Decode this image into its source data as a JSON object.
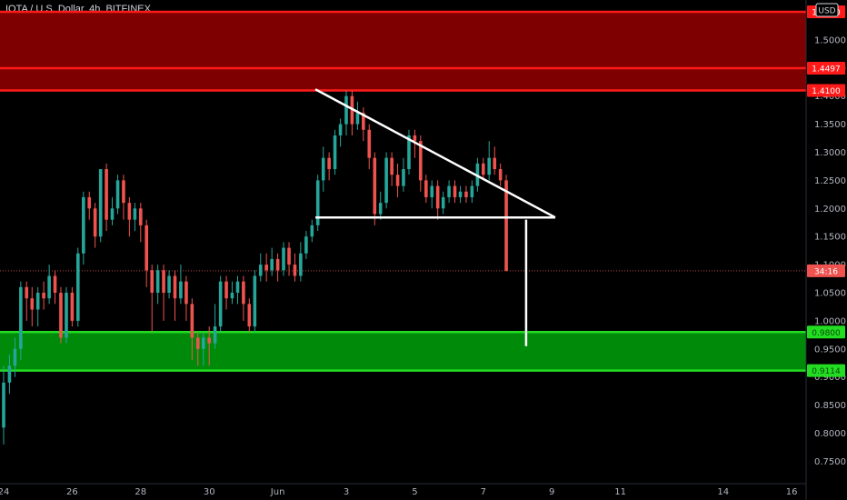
{
  "title": "IOTA / U.S. Dollar, 4h, BITFINEX",
  "currency": "USD",
  "colors": {
    "up": "#26a69a",
    "down": "#ef5350",
    "resistance_fill": "#7f0000",
    "resistance_line": "#ff1a1a",
    "support_fill": "#008a0a",
    "support_line": "#22dd22",
    "pattern": "#ffffff",
    "background": "#000000"
  },
  "chart_data": {
    "type": "candlestick",
    "x_axis": {
      "ticks": [
        {
          "label": "24",
          "day": 24
        },
        {
          "label": "26",
          "day": 26
        },
        {
          "label": "28",
          "day": 28
        },
        {
          "label": "30",
          "day": 30
        },
        {
          "label": "Jun",
          "day": 32
        },
        {
          "label": "3",
          "day": 34
        },
        {
          "label": "5",
          "day": 36
        },
        {
          "label": "7",
          "day": 38
        },
        {
          "label": "9",
          "day": 40
        },
        {
          "label": "11",
          "day": 42
        },
        {
          "label": "14",
          "day": 45
        },
        {
          "label": "16",
          "day": 47
        }
      ]
    },
    "y_axis": {
      "range": [
        0.725,
        1.555
      ],
      "ticks": [
        "1.5000",
        "1.4500",
        "1.4000",
        "1.3500",
        "1.3000",
        "1.2500",
        "1.2000",
        "1.1500",
        "1.1000",
        "1.0500",
        "1.0000",
        "0.9500",
        "0.9000",
        "0.8500",
        "0.8000",
        "0.7500"
      ]
    },
    "zones": [
      {
        "name": "resistance",
        "from": 1.41,
        "to": 1.55,
        "level_labels": [
          "1.5500",
          "1.4497",
          "1.4100"
        ],
        "levels": [
          1.55,
          1.4497,
          1.41
        ]
      },
      {
        "name": "support",
        "from": 0.9114,
        "to": 0.98,
        "level_labels": [
          "0.9800",
          "0.9114"
        ],
        "levels": [
          0.98,
          0.9114
        ]
      }
    ],
    "pattern": {
      "name": "descending triangle",
      "upper_line": [
        {
          "day": 33.1,
          "price": 1.412
        },
        {
          "day": 40.1,
          "price": 1.184
        }
      ],
      "base_line": [
        {
          "day": 33.1,
          "price": 1.184
        },
        {
          "day": 40.1,
          "price": 1.184
        }
      ],
      "target_line": [
        {
          "day": 39.25,
          "price": 1.18
        },
        {
          "day": 39.25,
          "price": 0.955
        }
      ]
    },
    "last_price": {
      "price": 1.089,
      "label": "34:16"
    },
    "candles": [
      [
        24.0,
        0.81,
        0.89,
        0.92,
        0.78
      ],
      [
        24.17,
        0.89,
        0.92,
        0.94,
        0.87
      ],
      [
        24.33,
        0.92,
        0.95,
        0.97,
        0.9
      ],
      [
        24.5,
        0.95,
        1.06,
        1.07,
        0.93
      ],
      [
        24.67,
        1.06,
        1.04,
        1.07,
        1.0
      ],
      [
        24.83,
        1.04,
        1.02,
        1.06,
        0.99
      ],
      [
        25.0,
        1.02,
        1.05,
        1.06,
        0.99
      ],
      [
        25.17,
        1.05,
        1.04,
        1.07,
        1.02
      ],
      [
        25.33,
        1.04,
        1.08,
        1.1,
        1.03
      ],
      [
        25.5,
        1.08,
        1.05,
        1.09,
        1.03
      ],
      [
        25.67,
        1.05,
        0.97,
        1.06,
        0.96
      ],
      [
        25.83,
        0.97,
        1.05,
        1.06,
        0.96
      ],
      [
        26.0,
        1.05,
        1.0,
        1.06,
        0.99
      ],
      [
        26.17,
        1.0,
        1.12,
        1.13,
        0.99
      ],
      [
        26.33,
        1.12,
        1.22,
        1.23,
        1.1
      ],
      [
        26.5,
        1.22,
        1.2,
        1.23,
        1.18
      ],
      [
        26.67,
        1.2,
        1.15,
        1.21,
        1.13
      ],
      [
        26.83,
        1.15,
        1.27,
        1.27,
        1.14
      ],
      [
        27.0,
        1.27,
        1.18,
        1.28,
        1.16
      ],
      [
        27.17,
        1.18,
        1.2,
        1.22,
        1.17
      ],
      [
        27.33,
        1.2,
        1.25,
        1.26,
        1.19
      ],
      [
        27.5,
        1.25,
        1.21,
        1.26,
        1.18
      ],
      [
        27.67,
        1.21,
        1.18,
        1.22,
        1.15
      ],
      [
        27.83,
        1.18,
        1.2,
        1.21,
        1.16
      ],
      [
        28.0,
        1.2,
        1.17,
        1.21,
        1.14
      ],
      [
        28.17,
        1.17,
        1.09,
        1.18,
        1.06
      ],
      [
        28.33,
        1.09,
        1.05,
        1.1,
        0.98
      ],
      [
        28.5,
        1.05,
        1.09,
        1.1,
        1.03
      ],
      [
        28.67,
        1.09,
        1.05,
        1.1,
        1.0
      ],
      [
        28.83,
        1.05,
        1.08,
        1.09,
        1.04
      ],
      [
        29.0,
        1.08,
        1.04,
        1.09,
        1.0
      ],
      [
        29.17,
        1.04,
        1.07,
        1.1,
        1.03
      ],
      [
        29.33,
        1.07,
        1.03,
        1.08,
        1.0
      ],
      [
        29.5,
        1.03,
        0.97,
        1.04,
        0.93
      ],
      [
        29.67,
        0.97,
        0.95,
        0.98,
        0.92
      ],
      [
        29.83,
        0.95,
        0.97,
        0.98,
        0.92
      ],
      [
        30.0,
        0.97,
        0.96,
        0.99,
        0.92
      ],
      [
        30.17,
        0.96,
        0.99,
        1.03,
        0.95
      ],
      [
        30.33,
        0.99,
        1.07,
        1.08,
        0.98
      ],
      [
        30.5,
        1.07,
        1.04,
        1.08,
        1.02
      ],
      [
        30.67,
        1.04,
        1.05,
        1.07,
        1.03
      ],
      [
        30.83,
        1.05,
        1.07,
        1.08,
        1.03
      ],
      [
        31.0,
        1.07,
        1.03,
        1.08,
        1.0
      ],
      [
        31.17,
        1.03,
        0.99,
        1.04,
        0.98
      ],
      [
        31.33,
        0.99,
        1.08,
        1.09,
        0.98
      ],
      [
        31.5,
        1.08,
        1.1,
        1.12,
        1.07
      ],
      [
        31.67,
        1.1,
        1.09,
        1.12,
        1.07
      ],
      [
        31.83,
        1.09,
        1.11,
        1.13,
        1.08
      ],
      [
        32.0,
        1.11,
        1.09,
        1.12,
        1.07
      ],
      [
        32.17,
        1.09,
        1.13,
        1.14,
        1.08
      ],
      [
        32.33,
        1.13,
        1.1,
        1.14,
        1.08
      ],
      [
        32.5,
        1.1,
        1.08,
        1.12,
        1.07
      ],
      [
        32.67,
        1.08,
        1.12,
        1.14,
        1.07
      ],
      [
        32.83,
        1.12,
        1.15,
        1.16,
        1.11
      ],
      [
        33.0,
        1.15,
        1.17,
        1.18,
        1.14
      ],
      [
        33.17,
        1.17,
        1.25,
        1.26,
        1.16
      ],
      [
        33.33,
        1.25,
        1.29,
        1.31,
        1.23
      ],
      [
        33.5,
        1.29,
        1.27,
        1.3,
        1.25
      ],
      [
        33.67,
        1.27,
        1.33,
        1.34,
        1.26
      ],
      [
        33.83,
        1.33,
        1.35,
        1.36,
        1.31
      ],
      [
        34.0,
        1.35,
        1.4,
        1.41,
        1.33
      ],
      [
        34.17,
        1.4,
        1.35,
        1.41,
        1.33
      ],
      [
        34.33,
        1.35,
        1.37,
        1.39,
        1.34
      ],
      [
        34.5,
        1.37,
        1.34,
        1.38,
        1.32
      ],
      [
        34.67,
        1.34,
        1.29,
        1.35,
        1.27
      ],
      [
        34.83,
        1.29,
        1.19,
        1.3,
        1.17
      ],
      [
        35.0,
        1.19,
        1.21,
        1.23,
        1.18
      ],
      [
        35.17,
        1.21,
        1.29,
        1.3,
        1.2
      ],
      [
        35.33,
        1.29,
        1.26,
        1.3,
        1.24
      ],
      [
        35.5,
        1.26,
        1.24,
        1.28,
        1.22
      ],
      [
        35.67,
        1.24,
        1.27,
        1.29,
        1.23
      ],
      [
        35.83,
        1.27,
        1.33,
        1.34,
        1.26
      ],
      [
        36.0,
        1.33,
        1.32,
        1.34,
        1.29
      ],
      [
        36.17,
        1.32,
        1.25,
        1.33,
        1.23
      ],
      [
        36.33,
        1.25,
        1.22,
        1.26,
        1.21
      ],
      [
        36.5,
        1.22,
        1.24,
        1.25,
        1.2
      ],
      [
        36.67,
        1.24,
        1.2,
        1.25,
        1.18
      ],
      [
        36.83,
        1.2,
        1.22,
        1.23,
        1.19
      ],
      [
        37.0,
        1.22,
        1.24,
        1.25,
        1.21
      ],
      [
        37.17,
        1.24,
        1.22,
        1.25,
        1.21
      ],
      [
        37.33,
        1.22,
        1.23,
        1.24,
        1.21
      ],
      [
        37.5,
        1.23,
        1.22,
        1.24,
        1.21
      ],
      [
        37.67,
        1.22,
        1.24,
        1.25,
        1.21
      ],
      [
        37.83,
        1.24,
        1.28,
        1.29,
        1.23
      ],
      [
        38.0,
        1.28,
        1.26,
        1.29,
        1.25
      ],
      [
        38.17,
        1.26,
        1.29,
        1.32,
        1.25
      ],
      [
        38.33,
        1.29,
        1.27,
        1.31,
        1.26
      ],
      [
        38.5,
        1.27,
        1.25,
        1.28,
        1.24
      ],
      [
        38.67,
        1.25,
        1.089,
        1.26,
        1.088
      ]
    ]
  }
}
